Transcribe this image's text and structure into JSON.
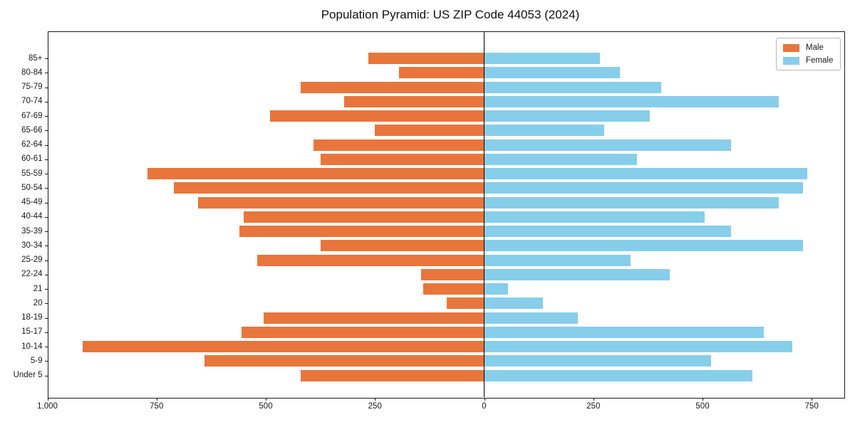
{
  "title": "Population Pyramid: US ZIP Code 44053 (2024)",
  "legend": {
    "male_label": "Male",
    "female_label": "Female"
  },
  "colors": {
    "male": "#E8763C",
    "female": "#87CEEB",
    "axis": "#1a1a1a"
  },
  "x_axis": {
    "tick_values": [
      -1000,
      -750,
      -500,
      -250,
      0,
      250,
      500,
      750
    ],
    "tick_labels": [
      "1,000",
      "750",
      "500",
      "250",
      "0",
      "250",
      "500",
      "750"
    ]
  },
  "chart_data": {
    "type": "bar",
    "subtype": "population-pyramid",
    "title": "Population Pyramid: US ZIP Code 44053 (2024)",
    "xlabel": "",
    "ylabel": "",
    "xlim": [
      -1000,
      823
    ],
    "grid": false,
    "legend_position": "upper right",
    "categories": [
      "85+",
      "80-84",
      "75-79",
      "70-74",
      "67-69",
      "65-66",
      "62-64",
      "60-61",
      "55-59",
      "50-54",
      "45-49",
      "40-44",
      "35-39",
      "30-34",
      "25-29",
      "22-24",
      "21",
      "20",
      "18-19",
      "15-17",
      "10-14",
      "5-9",
      "Under 5"
    ],
    "series": [
      {
        "name": "Male",
        "values": [
          265,
          195,
          420,
          320,
          490,
          250,
          390,
          375,
          770,
          710,
          655,
          550,
          560,
          375,
          520,
          145,
          140,
          85,
          505,
          555,
          920,
          640,
          420
        ]
      },
      {
        "name": "Female",
        "values": [
          265,
          310,
          405,
          675,
          380,
          275,
          565,
          350,
          740,
          730,
          675,
          505,
          565,
          730,
          335,
          425,
          55,
          135,
          215,
          640,
          705,
          520,
          615
        ]
      }
    ]
  }
}
